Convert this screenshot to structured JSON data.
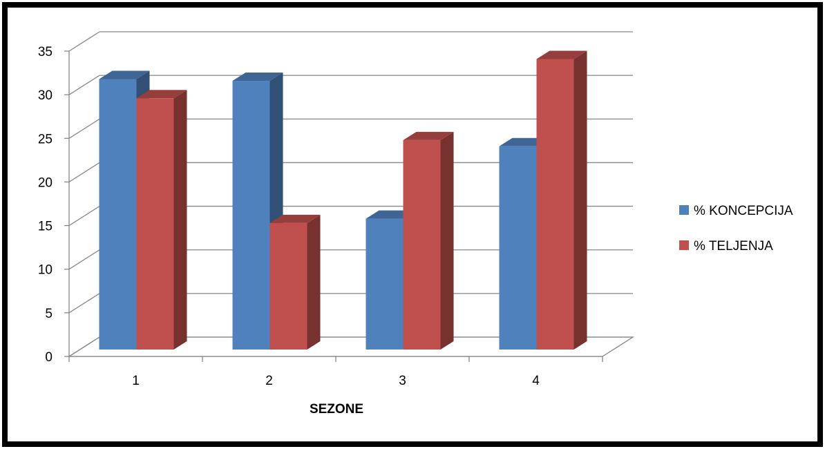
{
  "chart_data": {
    "type": "bar",
    "style": "3d-clustered-column",
    "categories": [
      "1",
      "2",
      "3",
      "4"
    ],
    "series": [
      {
        "name": "% KONCEPCIJA",
        "values": [
          31,
          30.8,
          15,
          23.3
        ],
        "color": "#4f81bd"
      },
      {
        "name": "% TELJENJA",
        "values": [
          28.8,
          14.5,
          24,
          33.3
        ],
        "color": "#c0504d"
      }
    ],
    "xlabel": "SEZONE",
    "ylabel": "",
    "title": "",
    "ylim": [
      0,
      35
    ],
    "yticks": [
      "0",
      "5",
      "10",
      "15",
      "20",
      "25",
      "30",
      "35"
    ],
    "grid": true,
    "legend_position": "right"
  }
}
